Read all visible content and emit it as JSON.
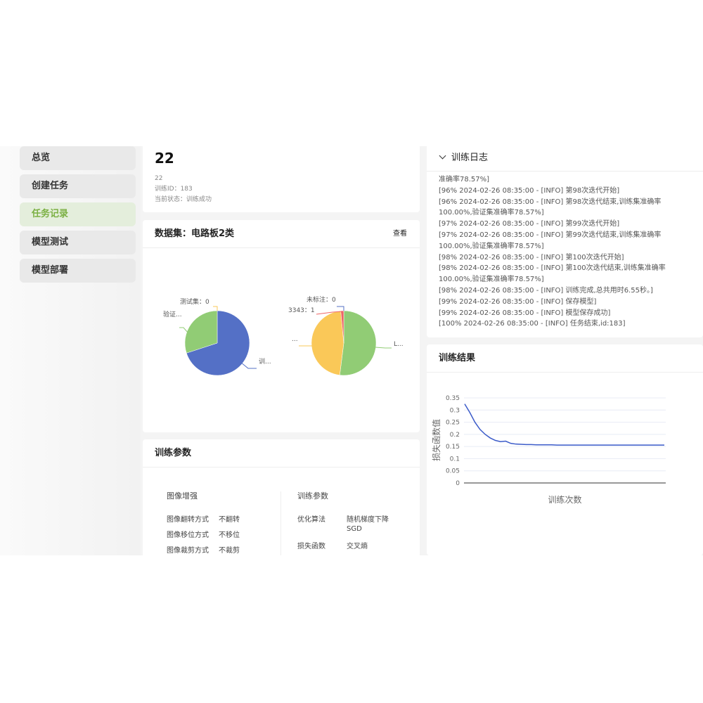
{
  "sidebar": {
    "items": [
      {
        "label": "总览"
      },
      {
        "label": "创建任务"
      },
      {
        "label": "任务记录",
        "active": true
      },
      {
        "label": "模型测试"
      },
      {
        "label": "模型部署"
      }
    ],
    "accent": "#7bb043"
  },
  "task": {
    "title": "22",
    "name": "22",
    "id_line": "训练ID：183",
    "status_line": "当前状态：训练成功"
  },
  "dataset": {
    "title": "数据集：电路板2类",
    "view_label": "查看"
  },
  "chart_data": [
    {
      "type": "pie",
      "slices": [
        {
          "label": "训...",
          "value": 70,
          "color": "#5470c6"
        },
        {
          "label": "验证...",
          "value": 30,
          "color": "#91cc75"
        },
        {
          "label": "测试集：0",
          "value": 0,
          "color": "#fac858"
        }
      ]
    },
    {
      "type": "pie",
      "slices": [
        {
          "label": "L...",
          "value": 52,
          "color": "#91cc75"
        },
        {
          "label": "...",
          "value": 46.5,
          "color": "#fac858"
        },
        {
          "label": "3343：1",
          "value": 1.5,
          "color": "#ee6666"
        },
        {
          "label": "未标注：0",
          "value": 0,
          "color": "#5470c6"
        }
      ]
    },
    {
      "type": "line",
      "title": "训练结果",
      "xlabel": "训练次数",
      "ylabel": "损失函数值",
      "ylim": [
        0,
        0.35
      ],
      "yticks": [
        "0",
        "0.05",
        "0.1",
        "0.15",
        "0.2",
        "0.25",
        "0.3",
        "0.35"
      ],
      "grid": true,
      "color": "#3b5bc9",
      "values": [
        0.325,
        0.29,
        0.25,
        0.22,
        0.2,
        0.185,
        0.175,
        0.17,
        0.172,
        0.163,
        0.16,
        0.159,
        0.158,
        0.158,
        0.157,
        0.157,
        0.157,
        0.157,
        0.156,
        0.156,
        0.156,
        0.156,
        0.156,
        0.156,
        0.156,
        0.156,
        0.156,
        0.156,
        0.156,
        0.156,
        0.156,
        0.156,
        0.156,
        0.156,
        0.156,
        0.156,
        0.156,
        0.156,
        0.156,
        0.156
      ]
    }
  ],
  "params": {
    "title": "训练参数",
    "aug_title": "图像增强",
    "aug": [
      {
        "k": "图像翻转方式",
        "v": "不翻转"
      },
      {
        "k": "图像移位方式",
        "v": "不移位"
      },
      {
        "k": "图像裁剪方式",
        "v": "不裁剪"
      }
    ],
    "train_title": "训练参数",
    "train": [
      {
        "k": "优化算法",
        "v": "随机梯度下降",
        "v2": "SGD"
      },
      {
        "k": "损失函数",
        "v": "交叉熵"
      }
    ]
  },
  "log": {
    "title": "训练日志",
    "lines": [
      "准确率78.57%]",
      "[96% 2024-02-26 08:35:00 - [INFO] 第98次迭代开始]",
      "[96% 2024-02-26 08:35:00 - [INFO] 第98次迭代结束,训练集准确率100.00%,验证集准确率78.57%]",
      "[97% 2024-02-26 08:35:00 - [INFO] 第99次迭代开始]",
      "[97% 2024-02-26 08:35:00 - [INFO] 第99次迭代结束,训练集准确率100.00%,验证集准确率78.57%]",
      "[98% 2024-02-26 08:35:00 - [INFO] 第100次迭代开始]",
      "[98% 2024-02-26 08:35:00 - [INFO] 第100次迭代结束,训练集准确率100.00%,验证集准确率78.57%]",
      "[98% 2024-02-26 08:35:00 - [INFO] 训练完成,总共用时6.55秒。]",
      "[99% 2024-02-26 08:35:00 - [INFO] 保存模型]",
      "[99% 2024-02-26 08:35:00 - [INFO] 模型保存成功]",
      "[100% 2024-02-26 08:35:00 - [INFO] 任务结束,id:183]"
    ]
  }
}
